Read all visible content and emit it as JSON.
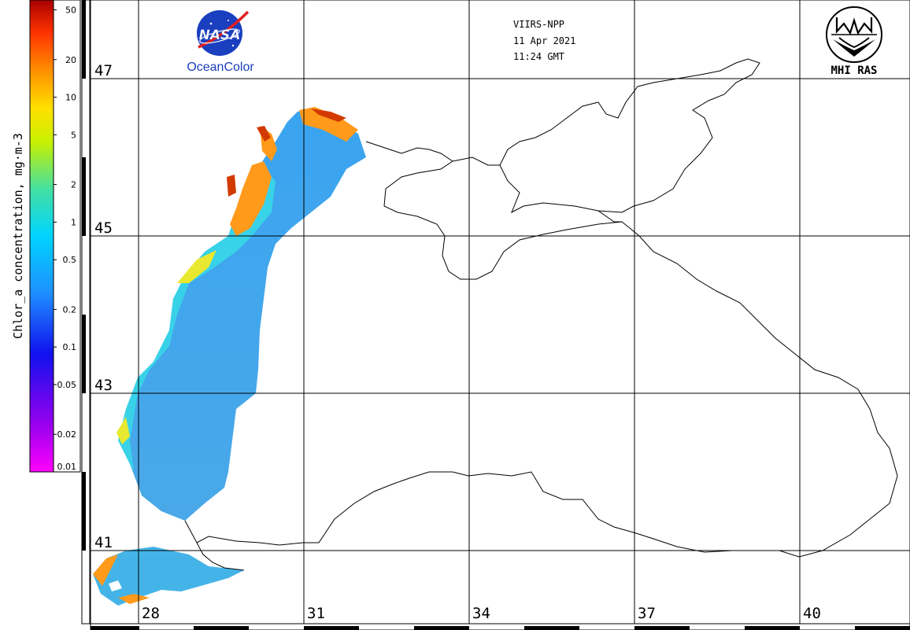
{
  "colorbar": {
    "title": "Chlor_a concentration, mg·m-3",
    "ticks": [
      "50",
      "20",
      "10",
      "5",
      "2",
      "1",
      "0.5",
      "0.2",
      "0.1",
      "0.05",
      "0.02",
      "0.01"
    ],
    "tick_values": [
      50,
      20,
      10,
      5,
      2,
      1,
      0.5,
      0.2,
      0.1,
      0.05,
      0.02,
      0.01
    ],
    "range": [
      0.01,
      60
    ],
    "scale": "log",
    "colors": [
      "#ff00ff",
      "#9900ee",
      "#1111ee",
      "#1e90ff",
      "#00d4ff",
      "#44e0a0",
      "#c8f000",
      "#ffe000",
      "#ff9000",
      "#ff3300",
      "#aa0000"
    ]
  },
  "header": {
    "satellite": "VIIRS-NPP",
    "date": "11 Apr 2021",
    "time": "11:24 GMT"
  },
  "logos": {
    "nasa_text": "NASA",
    "oceancolor": "OceanColor",
    "mhi": "MHI RAS"
  },
  "grid": {
    "lat_labels": [
      "47",
      "45",
      "43",
      "41"
    ],
    "lon_labels": [
      "28",
      "31",
      "34",
      "37",
      "40"
    ]
  },
  "colors": {
    "coast": "#000000",
    "grid": "#000000",
    "nasa_blue": "#1a3fbf",
    "oceancolor_text": "#1a3fbf"
  }
}
